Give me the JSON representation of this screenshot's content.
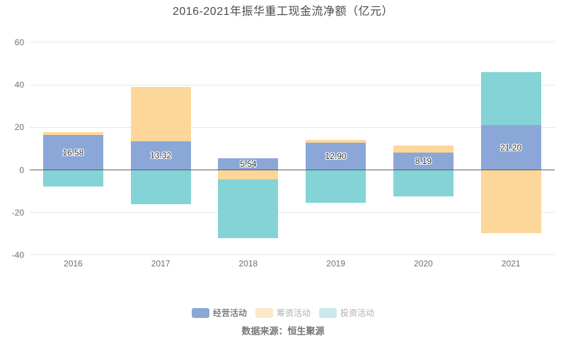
{
  "title": "2016-2021年振华重工现金流净额（亿元）",
  "source": "数据来源：恒生聚源",
  "chart_data": {
    "type": "bar",
    "stacked": true,
    "title": "2016-2021年振华重工现金流净额（亿元）",
    "categories": [
      "2016",
      "2017",
      "2018",
      "2019",
      "2020",
      "2021"
    ],
    "series": [
      {
        "name": "经营活动",
        "color": "#8aa7d7",
        "show_labels": true,
        "values": [
          16.58,
          13.32,
          5.54,
          12.9,
          8.19,
          21.2
        ],
        "labels": [
          "16.58",
          "13.32",
          "5.54",
          "12.90",
          "8.19",
          "21.20"
        ]
      },
      {
        "name": "筹资活动",
        "color": "#fdd699",
        "show_labels": false,
        "values": [
          1.3,
          25.6,
          -4.5,
          1.2,
          3.4,
          -29.9
        ]
      },
      {
        "name": "投资活动",
        "color": "#84d3d6",
        "show_labels": false,
        "values": [
          -7.8,
          -16.2,
          -27.5,
          -15.5,
          -12.4,
          24.7
        ]
      }
    ],
    "ylim": [
      -40,
      60
    ],
    "yticks": [
      60,
      40,
      20,
      0,
      -20,
      -40
    ],
    "grid": true,
    "legend_position": "bottom",
    "xlabel": "",
    "ylabel": ""
  },
  "legend": {
    "items": [
      {
        "label": "经营活动",
        "swatch": "#8aa7d7",
        "text_color": "#464646"
      },
      {
        "label": "筹资活动",
        "swatch": "#fbe8c8",
        "text_color": "#afafaf"
      },
      {
        "label": "投资活动",
        "swatch": "#c9e9eb",
        "text_color": "#afafaf"
      }
    ]
  },
  "colors": {
    "background": "#ffffff",
    "grid_line": "#e2e8f2",
    "zero_line": "#5b6066",
    "axis_label": "#6e7079",
    "title_text": "#4c4c4c",
    "value_label": "#333333",
    "source_text": "#777777"
  }
}
